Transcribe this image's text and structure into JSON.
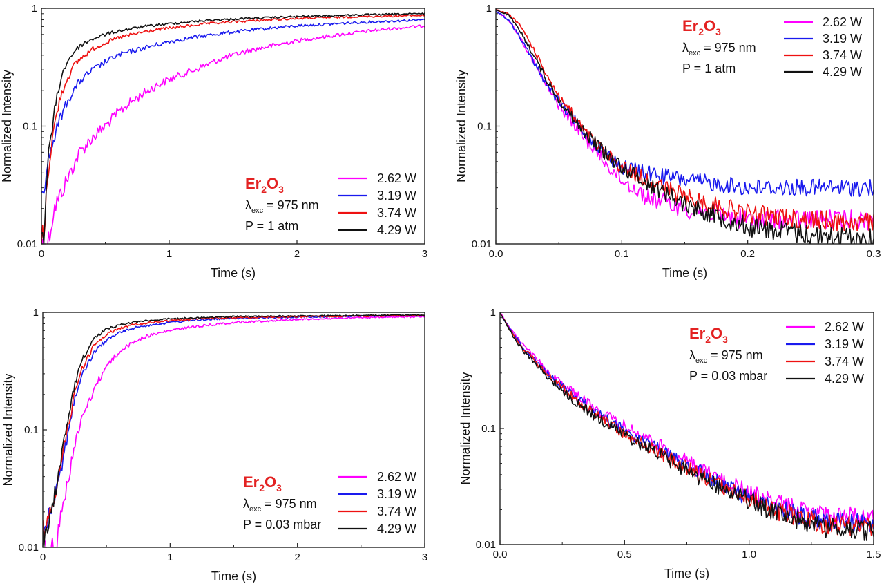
{
  "figure_note": "",
  "chart_data": [
    {
      "type": "line",
      "panel": "top-left",
      "xlabel": "Time (s)",
      "ylabel": "Normalized Intensity",
      "xlim": [
        0,
        3
      ],
      "ylim": [
        0.01,
        1
      ],
      "yscale": "log",
      "x_ticks": [
        0,
        1,
        2,
        3
      ],
      "x_tick_labels": [
        "0",
        "1",
        "2",
        "3"
      ],
      "y_ticks": [
        0.01,
        0.1,
        1
      ],
      "y_tick_labels": [
        "0.01",
        "0.1",
        "1"
      ],
      "grid": false,
      "legend_position": "bottom-right",
      "annotation": {
        "compound": "Er",
        "sub1": "2",
        "mid": "O",
        "sub2": "3",
        "lambda_sym": "λ",
        "lambda_sub": "exc",
        "lambda_val": " = 975 nm",
        "pressure": "P = 1 atm"
      },
      "series": [
        {
          "name": "2.62 W",
          "color": "#ff00ff",
          "x": [
            0.05,
            0.1,
            0.2,
            0.3,
            0.4,
            0.5,
            0.6,
            0.7,
            0.8,
            0.9,
            1.0,
            1.2,
            1.4,
            1.6,
            1.8,
            2.0,
            2.2,
            2.4,
            2.6,
            2.8,
            3.0
          ],
          "y": [
            0.01,
            0.02,
            0.035,
            0.06,
            0.08,
            0.1,
            0.13,
            0.16,
            0.19,
            0.22,
            0.25,
            0.3,
            0.37,
            0.43,
            0.48,
            0.53,
            0.57,
            0.61,
            0.65,
            0.68,
            0.71
          ]
        },
        {
          "name": "3.19 W",
          "color": "#1a1aee",
          "x": [
            0.02,
            0.05,
            0.1,
            0.15,
            0.2,
            0.25,
            0.3,
            0.4,
            0.5,
            0.6,
            0.8,
            1.0,
            1.2,
            1.5,
            1.8,
            2.0,
            2.5,
            3.0
          ],
          "y": [
            0.03,
            0.05,
            0.08,
            0.12,
            0.16,
            0.2,
            0.24,
            0.3,
            0.35,
            0.4,
            0.46,
            0.52,
            0.57,
            0.63,
            0.68,
            0.71,
            0.76,
            0.8
          ]
        },
        {
          "name": "3.74 W",
          "color": "#ee1111",
          "x": [
            0.02,
            0.05,
            0.1,
            0.15,
            0.2,
            0.25,
            0.3,
            0.4,
            0.5,
            0.6,
            0.8,
            1.0,
            1.3,
            1.6,
            2.0,
            2.5,
            3.0
          ],
          "y": [
            0.012,
            0.04,
            0.1,
            0.18,
            0.25,
            0.32,
            0.37,
            0.45,
            0.51,
            0.56,
            0.63,
            0.68,
            0.74,
            0.78,
            0.82,
            0.85,
            0.87
          ]
        },
        {
          "name": "4.29 W",
          "color": "#111111",
          "x": [
            0.02,
            0.05,
            0.1,
            0.15,
            0.2,
            0.25,
            0.3,
            0.4,
            0.5,
            0.6,
            0.8,
            1.0,
            1.3,
            1.6,
            2.0,
            2.5,
            3.0
          ],
          "y": [
            0.012,
            0.05,
            0.13,
            0.25,
            0.35,
            0.42,
            0.48,
            0.55,
            0.6,
            0.64,
            0.7,
            0.74,
            0.79,
            0.82,
            0.85,
            0.88,
            0.9
          ]
        }
      ]
    },
    {
      "type": "line",
      "panel": "top-right",
      "xlabel": "Time (s)",
      "ylabel": "Normalized Intensity",
      "xlim": [
        0,
        0.3
      ],
      "ylim": [
        0.01,
        1
      ],
      "yscale": "log",
      "x_ticks": [
        0,
        0.1,
        0.2,
        0.3
      ],
      "x_tick_labels": [
        "0.0",
        "0.1",
        "0.2",
        "0.3"
      ],
      "y_ticks": [
        0.01,
        0.1,
        1
      ],
      "y_tick_labels": [
        "0.01",
        "0.1",
        "1"
      ],
      "grid": false,
      "legend_position": "top-right",
      "annotation": {
        "compound": "Er",
        "sub1": "2",
        "mid": "O",
        "sub2": "3",
        "lambda_sym": "λ",
        "lambda_sub": "exc",
        "lambda_val": " = 975 nm",
        "pressure": "P = 1 atm"
      },
      "series": [
        {
          "name": "2.62 W",
          "color": "#ff00ff",
          "x": [
            0,
            0.01,
            0.02,
            0.03,
            0.04,
            0.05,
            0.06,
            0.07,
            0.08,
            0.09,
            0.1,
            0.12,
            0.15,
            0.2,
            0.25,
            0.3
          ],
          "y": [
            0.95,
            0.8,
            0.55,
            0.35,
            0.22,
            0.15,
            0.11,
            0.08,
            0.06,
            0.045,
            0.035,
            0.025,
            0.02,
            0.016,
            0.016,
            0.016
          ]
        },
        {
          "name": "3.19 W",
          "color": "#1a1aee",
          "x": [
            0,
            0.01,
            0.02,
            0.03,
            0.04,
            0.05,
            0.06,
            0.07,
            0.08,
            0.09,
            0.1,
            0.12,
            0.15,
            0.2,
            0.25,
            0.3
          ],
          "y": [
            0.95,
            0.8,
            0.55,
            0.35,
            0.23,
            0.16,
            0.12,
            0.09,
            0.07,
            0.055,
            0.045,
            0.04,
            0.035,
            0.03,
            0.03,
            0.03
          ]
        },
        {
          "name": "3.74 W",
          "color": "#ee1111",
          "x": [
            0,
            0.01,
            0.02,
            0.03,
            0.04,
            0.05,
            0.06,
            0.07,
            0.08,
            0.09,
            0.1,
            0.12,
            0.15,
            0.2,
            0.25,
            0.3
          ],
          "y": [
            0.97,
            0.9,
            0.7,
            0.45,
            0.28,
            0.18,
            0.13,
            0.09,
            0.07,
            0.055,
            0.045,
            0.035,
            0.025,
            0.018,
            0.016,
            0.015
          ]
        },
        {
          "name": "4.29 W",
          "color": "#111111",
          "x": [
            0,
            0.01,
            0.02,
            0.03,
            0.04,
            0.05,
            0.06,
            0.07,
            0.08,
            0.09,
            0.1,
            0.12,
            0.15,
            0.2,
            0.25,
            0.3
          ],
          "y": [
            0.97,
            0.88,
            0.62,
            0.4,
            0.25,
            0.17,
            0.12,
            0.09,
            0.07,
            0.055,
            0.045,
            0.033,
            0.022,
            0.014,
            0.012,
            0.011
          ]
        }
      ]
    },
    {
      "type": "line",
      "panel": "bottom-left",
      "xlabel": "Time (s)",
      "ylabel": "Normalized Intensity",
      "xlim": [
        0,
        3
      ],
      "ylim": [
        0.01,
        1
      ],
      "yscale": "log",
      "x_ticks": [
        0,
        1,
        2,
        3
      ],
      "x_tick_labels": [
        "0",
        "1",
        "2",
        "3"
      ],
      "y_ticks": [
        0.01,
        0.1,
        1
      ],
      "y_tick_labels": [
        "0.01",
        "0.1",
        "1"
      ],
      "grid": false,
      "legend_position": "bottom-right",
      "annotation": {
        "compound": "Er",
        "sub1": "2",
        "mid": "O",
        "sub2": "3",
        "lambda_sym": "λ",
        "lambda_sub": "exc",
        "lambda_val": " = 975 nm",
        "pressure": "P = 0.03 mbar"
      },
      "series": [
        {
          "name": "2.62 W",
          "color": "#ff00ff",
          "x": [
            0.1,
            0.15,
            0.2,
            0.25,
            0.3,
            0.4,
            0.5,
            0.6,
            0.7,
            0.8,
            1.0,
            1.2,
            1.5,
            2.0,
            2.5,
            3.0
          ],
          "y": [
            0.01,
            0.02,
            0.04,
            0.07,
            0.12,
            0.22,
            0.35,
            0.46,
            0.55,
            0.62,
            0.7,
            0.76,
            0.82,
            0.87,
            0.9,
            0.92
          ]
        },
        {
          "name": "3.19 W",
          "color": "#1a1aee",
          "x": [
            0.02,
            0.05,
            0.1,
            0.15,
            0.2,
            0.25,
            0.3,
            0.4,
            0.5,
            0.6,
            0.7,
            0.8,
            1.0,
            1.2,
            1.5,
            2.0,
            2.5,
            3.0
          ],
          "y": [
            0.015,
            0.02,
            0.03,
            0.05,
            0.1,
            0.18,
            0.28,
            0.45,
            0.58,
            0.67,
            0.73,
            0.77,
            0.82,
            0.86,
            0.89,
            0.91,
            0.93,
            0.94
          ]
        },
        {
          "name": "3.74 W",
          "color": "#ee1111",
          "x": [
            0.02,
            0.05,
            0.1,
            0.15,
            0.2,
            0.25,
            0.3,
            0.4,
            0.5,
            0.6,
            0.7,
            0.8,
            1.0,
            1.2,
            1.5,
            2.0,
            2.5,
            3.0
          ],
          "y": [
            0.015,
            0.02,
            0.03,
            0.055,
            0.11,
            0.2,
            0.32,
            0.52,
            0.65,
            0.73,
            0.78,
            0.81,
            0.85,
            0.88,
            0.9,
            0.92,
            0.93,
            0.94
          ]
        },
        {
          "name": "4.29 W",
          "color": "#111111",
          "x": [
            0.02,
            0.05,
            0.1,
            0.15,
            0.2,
            0.25,
            0.3,
            0.4,
            0.5,
            0.6,
            0.7,
            0.8,
            1.0,
            1.2,
            1.5,
            2.0,
            2.5,
            3.0
          ],
          "y": [
            0.012,
            0.018,
            0.03,
            0.06,
            0.13,
            0.24,
            0.38,
            0.6,
            0.72,
            0.78,
            0.82,
            0.85,
            0.88,
            0.9,
            0.92,
            0.93,
            0.94,
            0.95
          ]
        }
      ]
    },
    {
      "type": "line",
      "panel": "bottom-right",
      "xlabel": "Time (s)",
      "ylabel": "Normalized Intensity",
      "xlim": [
        0,
        1.5
      ],
      "ylim": [
        0.01,
        1
      ],
      "yscale": "log",
      "x_ticks": [
        0,
        0.5,
        1.0,
        1.5
      ],
      "x_tick_labels": [
        "0.0",
        "0.5",
        "1.0",
        "1.5"
      ],
      "y_ticks": [
        0.01,
        0.1,
        1
      ],
      "y_tick_labels": [
        "0.01",
        "0.1",
        "1"
      ],
      "grid": false,
      "legend_position": "top-right",
      "annotation": {
        "compound": "Er",
        "sub1": "2",
        "mid": "O",
        "sub2": "3",
        "lambda_sym": "λ",
        "lambda_sub": "exc",
        "lambda_val": " = 975 nm",
        "pressure": "P = 0.03 mbar"
      },
      "series": [
        {
          "name": "2.62 W",
          "color": "#ff00ff",
          "x": [
            0,
            0.05,
            0.1,
            0.2,
            0.3,
            0.4,
            0.5,
            0.6,
            0.7,
            0.8,
            0.9,
            1.0,
            1.1,
            1.2,
            1.3,
            1.5
          ],
          "y": [
            1.0,
            0.68,
            0.5,
            0.3,
            0.2,
            0.14,
            0.105,
            0.08,
            0.06,
            0.045,
            0.035,
            0.028,
            0.023,
            0.02,
            0.018,
            0.017
          ]
        },
        {
          "name": "3.19 W",
          "color": "#1a1aee",
          "x": [
            0,
            0.05,
            0.1,
            0.2,
            0.3,
            0.4,
            0.5,
            0.6,
            0.7,
            0.8,
            0.9,
            1.0,
            1.1,
            1.2,
            1.3,
            1.5
          ],
          "y": [
            1.0,
            0.66,
            0.48,
            0.28,
            0.19,
            0.13,
            0.095,
            0.072,
            0.055,
            0.042,
            0.032,
            0.025,
            0.021,
            0.018,
            0.016,
            0.015
          ]
        },
        {
          "name": "3.74 W",
          "color": "#ee1111",
          "x": [
            0,
            0.05,
            0.1,
            0.2,
            0.3,
            0.4,
            0.5,
            0.6,
            0.7,
            0.8,
            0.9,
            1.0,
            1.1,
            1.2,
            1.3,
            1.5
          ],
          "y": [
            1.0,
            0.65,
            0.47,
            0.28,
            0.18,
            0.125,
            0.09,
            0.068,
            0.052,
            0.04,
            0.031,
            0.025,
            0.02,
            0.017,
            0.015,
            0.014
          ]
        },
        {
          "name": "4.29 W",
          "color": "#111111",
          "x": [
            0,
            0.05,
            0.1,
            0.2,
            0.3,
            0.4,
            0.5,
            0.6,
            0.7,
            0.8,
            0.9,
            1.0,
            1.1,
            1.2,
            1.3,
            1.5
          ],
          "y": [
            1.0,
            0.63,
            0.45,
            0.27,
            0.17,
            0.12,
            0.088,
            0.066,
            0.05,
            0.038,
            0.03,
            0.024,
            0.019,
            0.016,
            0.014,
            0.013
          ]
        }
      ]
    }
  ]
}
